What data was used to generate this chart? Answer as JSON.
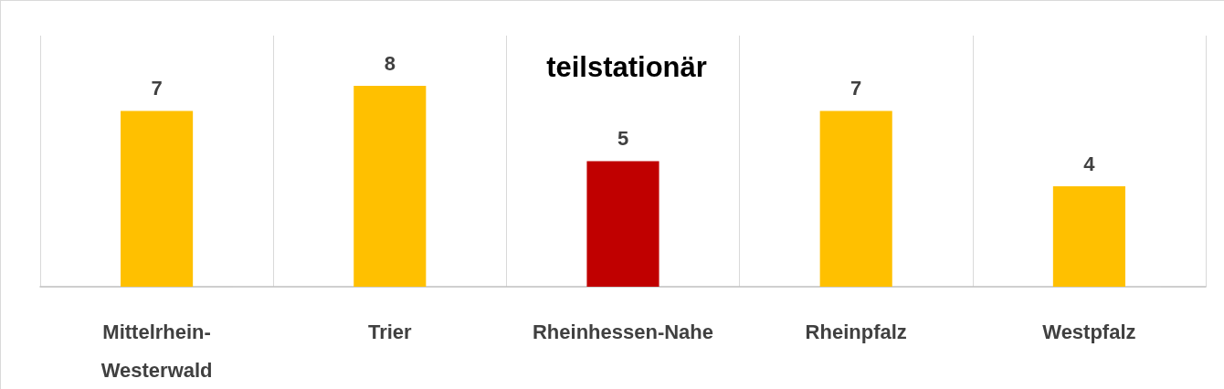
{
  "chart_data": {
    "type": "bar",
    "title": "teilstationär",
    "categories": [
      "Mittelrhein-Westerwald",
      "Trier",
      "Rheinhessen-Nahe",
      "Rheinpfalz",
      "Westpfalz"
    ],
    "values": [
      7,
      8,
      5,
      7,
      4
    ],
    "colors": [
      "#ffc000",
      "#ffc000",
      "#c00000",
      "#ffc000",
      "#ffc000"
    ],
    "data_labels": true,
    "grid": "x"
  }
}
